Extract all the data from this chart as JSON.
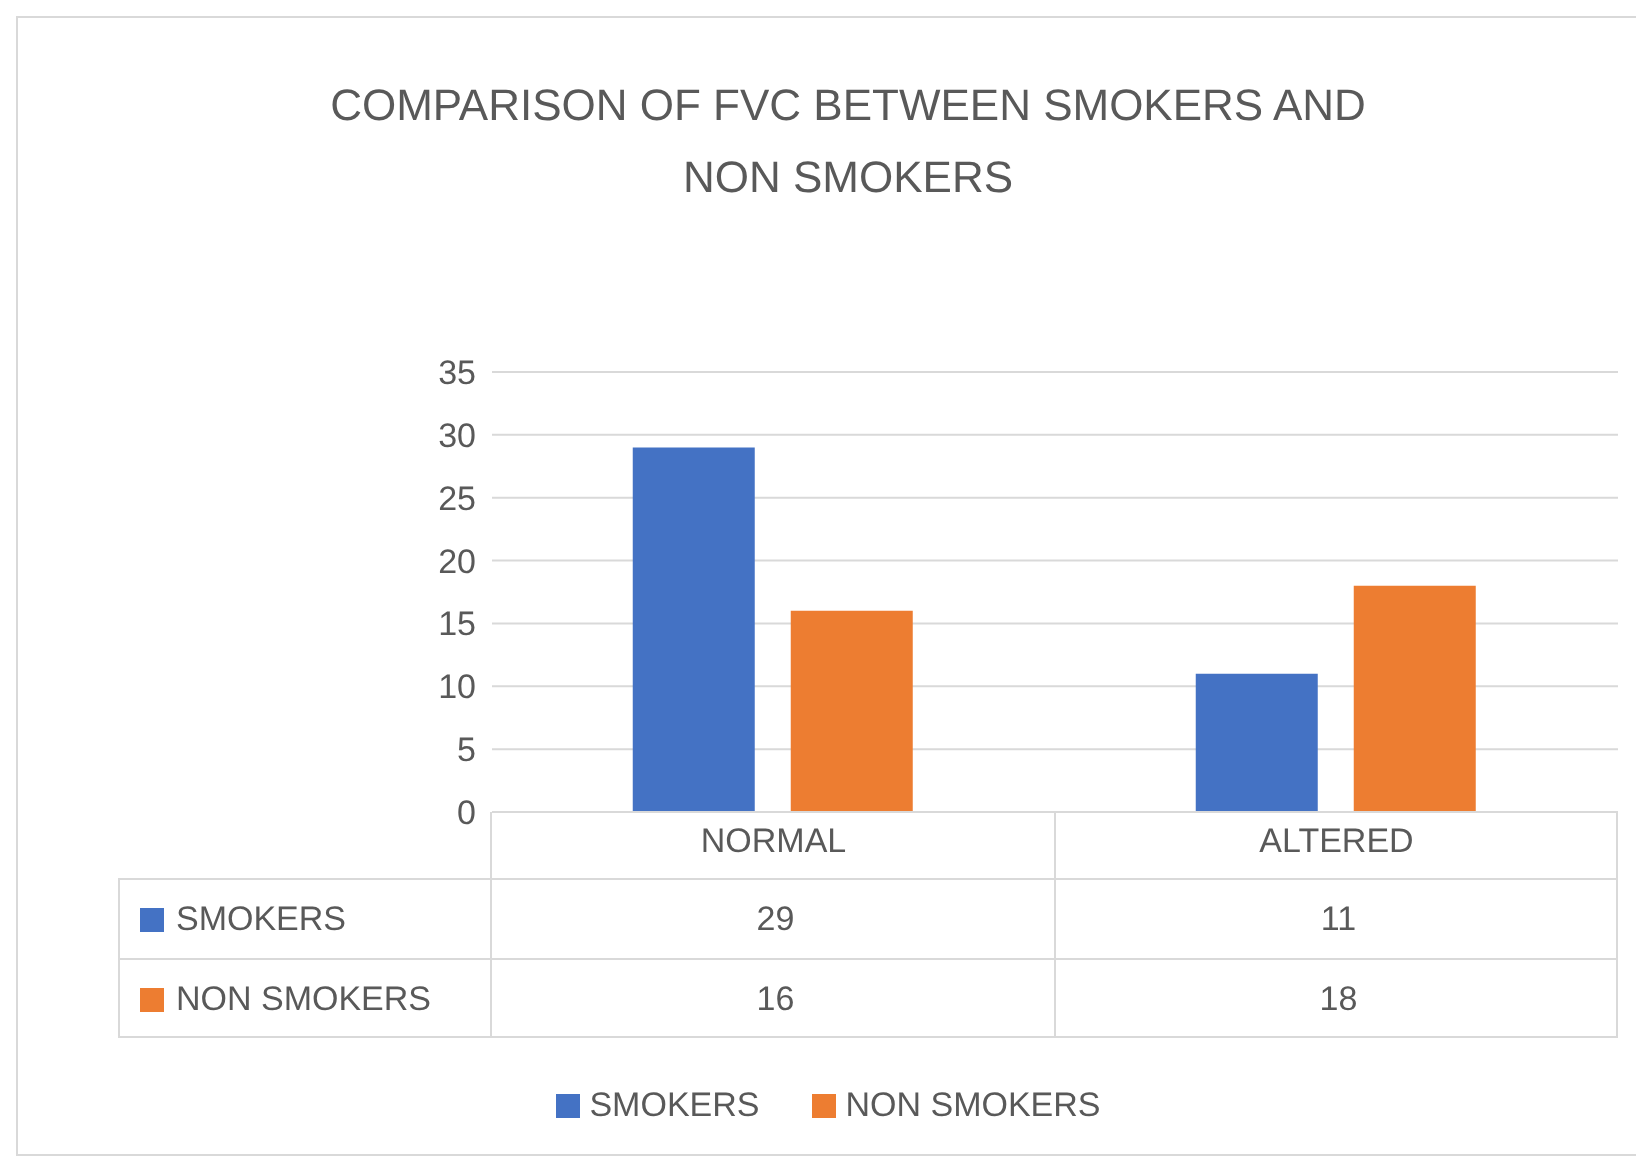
{
  "chart_data": {
    "type": "bar",
    "title": "COMPARISON OF FVC BETWEEN SMOKERS AND NON SMOKERS",
    "categories": [
      "NORMAL",
      "ALTERED"
    ],
    "series": [
      {
        "name": "SMOKERS",
        "color": "#4472c4",
        "values": [
          29,
          11
        ]
      },
      {
        "name": "NON SMOKERS",
        "color": "#ed7d31",
        "values": [
          16,
          18
        ]
      }
    ],
    "ylim": [
      0,
      35
    ],
    "yticks": [
      0,
      5,
      10,
      15,
      20,
      25,
      30,
      35
    ],
    "grid": "y",
    "legend": "bottom",
    "data_labels": true
  }
}
